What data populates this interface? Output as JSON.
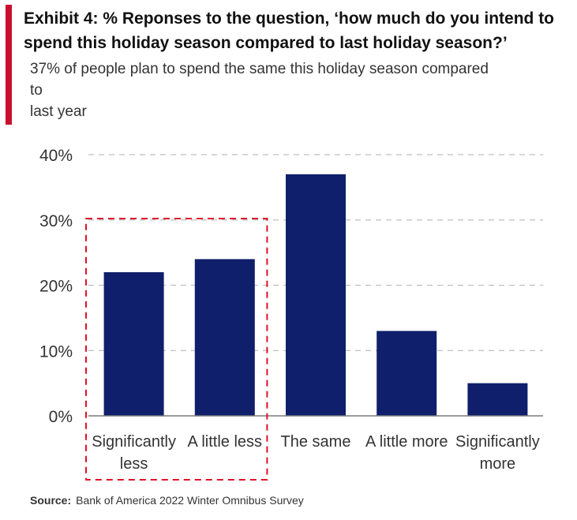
{
  "header": {
    "title": "Exhibit 4: % Reponses to the question, ‘how much do you intend to spend this holiday season compared to last holiday season?’",
    "subtitle_lines": [
      "37% of people plan to spend the same this holiday season compared",
      "to",
      "last year"
    ]
  },
  "colors": {
    "accent": "#c8102e",
    "bar": "#0f1f6b",
    "highlight": "#e0102a",
    "grid": "#bfbfbf"
  },
  "chart_data": {
    "type": "bar",
    "title": "Exhibit 4: % Reponses to the question, ‘how much do you intend to spend this holiday season compared to last holiday season?’",
    "categories": [
      [
        "Significantly",
        "less"
      ],
      [
        "A little less"
      ],
      [
        "The same"
      ],
      [
        "A little more"
      ],
      [
        "Significantly",
        "more"
      ]
    ],
    "values": [
      22,
      24,
      37,
      13,
      5
    ],
    "ylim": [
      0,
      40
    ],
    "yticks": [
      0,
      10,
      20,
      30,
      40
    ],
    "ytick_labels": [
      "0%",
      "10%",
      "20%",
      "30%",
      "40%"
    ],
    "grid": true,
    "highlight": {
      "categories": [
        0,
        1
      ],
      "style": "dashed red box"
    },
    "xlabel": "",
    "ylabel": ""
  },
  "footer": {
    "source_label": "Source:",
    "source_text": "Bank of America 2022 Winter Omnibus Survey"
  }
}
